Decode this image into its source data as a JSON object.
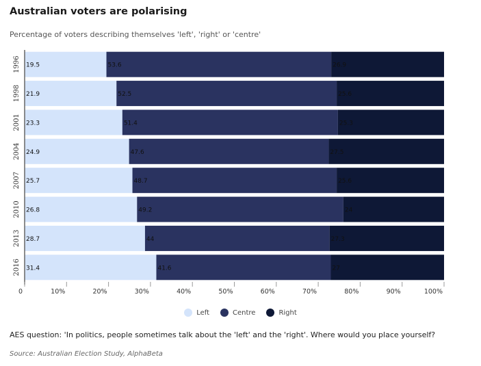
{
  "colors": {
    "Left": "#d4e4fb",
    "Centre": "#2a3360",
    "Right": "#0e1836",
    "axis": "#666666"
  },
  "chart_data": {
    "type": "bar",
    "orientation": "horizontal",
    "stacked": true,
    "title": "Australian voters are polarising",
    "subtitle": "Percentage of voters describing themselves 'left', 'right' or 'centre'",
    "categories": [
      "1996",
      "1998",
      "2001",
      "2004",
      "2007",
      "2010",
      "2013",
      "2016"
    ],
    "series": [
      {
        "name": "Left",
        "values": [
          19.5,
          21.9,
          23.3,
          24.9,
          25.7,
          26.8,
          28.7,
          31.4
        ]
      },
      {
        "name": "Centre",
        "values": [
          53.6,
          52.5,
          51.4,
          47.6,
          48.7,
          49.2,
          44,
          41.6
        ]
      },
      {
        "name": "Right",
        "values": [
          26.9,
          25.6,
          25.3,
          27.5,
          25.6,
          24,
          27.3,
          27
        ]
      }
    ],
    "xlim": [
      0,
      100
    ],
    "xticks": [
      "0",
      "10%",
      "20%",
      "30%",
      "40%",
      "50%",
      "60%",
      "70%",
      "80%",
      "90%",
      "100%"
    ],
    "legend_position": "bottom",
    "grid": false
  },
  "footer": {
    "note": "AES question: 'In politics, people sometimes talk about the 'left' and the 'right'. Where would you place yourself?",
    "source": "Source: Australian Election Study, AlphaBeta"
  }
}
